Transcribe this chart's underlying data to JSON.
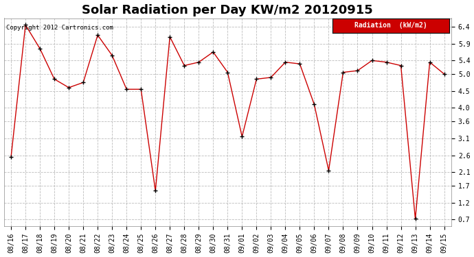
{
  "title": "Solar Radiation per Day KW/m2 20120915",
  "copyright_text": "Copyright 2012 Cartronics.com",
  "legend_label": "Radiation  (kW/m2)",
  "x_labels": [
    "08/16",
    "08/17",
    "08/18",
    "08/19",
    "08/20",
    "08/21",
    "08/22",
    "08/23",
    "08/24",
    "08/25",
    "08/26",
    "08/27",
    "08/28",
    "08/29",
    "08/30",
    "08/31",
    "09/01",
    "09/02",
    "09/03",
    "09/04",
    "09/05",
    "09/06",
    "09/07",
    "09/08",
    "09/09",
    "09/10",
    "09/11",
    "09/12",
    "09/13",
    "09/14",
    "09/15"
  ],
  "y_values": [
    2.55,
    6.45,
    5.75,
    4.85,
    4.6,
    4.75,
    6.15,
    5.55,
    4.55,
    4.55,
    1.55,
    6.1,
    5.25,
    5.35,
    5.65,
    5.05,
    3.15,
    4.85,
    4.9,
    5.35,
    5.3,
    4.1,
    2.15,
    5.05,
    5.1,
    5.4,
    5.35,
    5.25,
    0.72,
    5.35,
    5.0
  ],
  "line_color": "#cc0000",
  "marker_color": "#000000",
  "bg_color": "#ffffff",
  "plot_bg_color": "#ffffff",
  "grid_color": "#bbbbbb",
  "legend_bg": "#cc0000",
  "legend_text_color": "#ffffff",
  "ylim": [
    0.5,
    6.65
  ],
  "yticks": [
    0.7,
    1.2,
    1.7,
    2.1,
    2.6,
    3.1,
    3.6,
    4.0,
    4.5,
    5.0,
    5.4,
    5.9,
    6.4
  ],
  "title_fontsize": 13,
  "tick_fontsize": 7,
  "copyright_fontsize": 6.5,
  "legend_fontsize": 7
}
